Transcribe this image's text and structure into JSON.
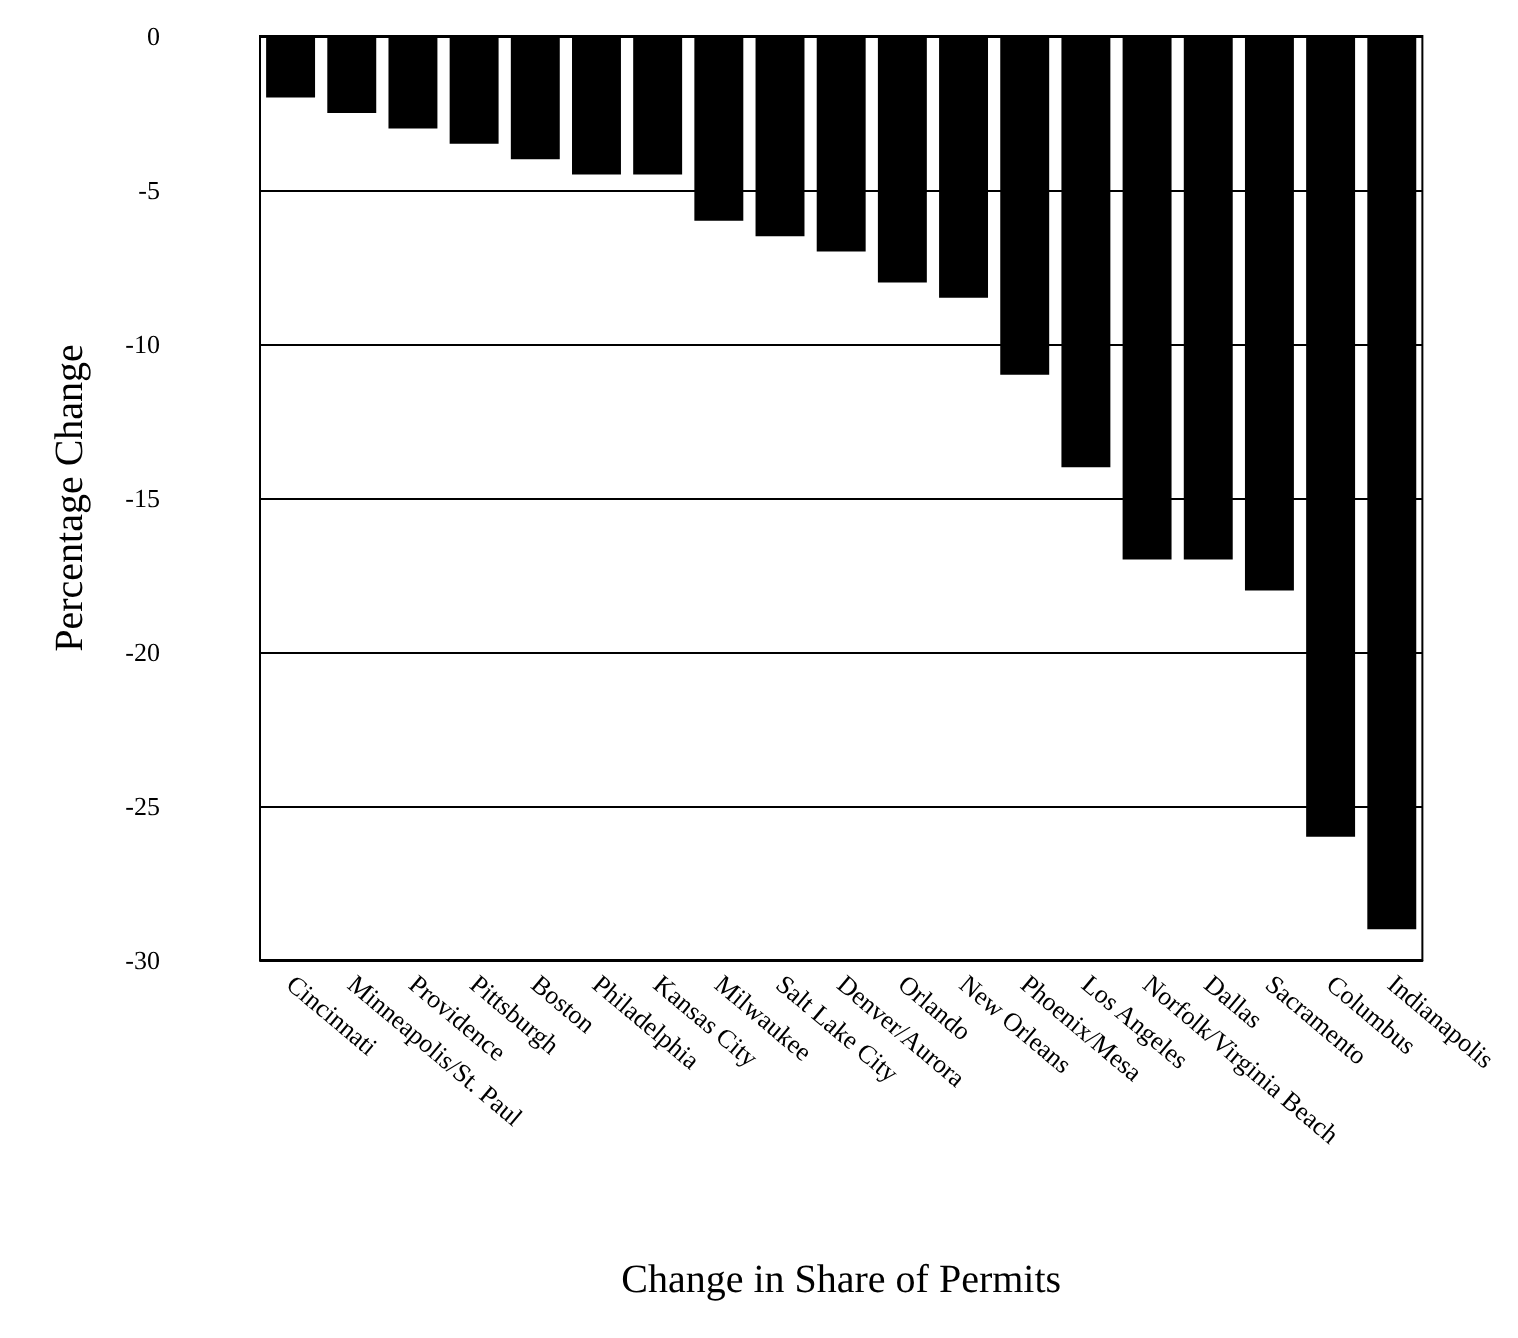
{
  "chart_data": {
    "type": "bar",
    "xlabel": "Change in Share of Permits",
    "ylabel": "Percentage Change",
    "categories": [
      "Cincinnati",
      "Minneapolis/St. Paul",
      "Providence",
      "Pittsburgh",
      "Boston",
      "Philadelphia",
      "Kansas City",
      "Milwaukee",
      "Salt Lake City",
      "Denver/Aurora",
      "Orlando",
      "New Orleans",
      "Phoenix/Mesa",
      "Los Angeles",
      "Norfolk/Virginia Beach",
      "Dallas",
      "Sacramento",
      "Columbus",
      "Indianapolis"
    ],
    "values": [
      -2,
      -2.5,
      -3,
      -3.5,
      -4,
      -4.5,
      -4.5,
      -6,
      -6.5,
      -7,
      -8,
      -8.5,
      -11,
      -14,
      -17,
      -17,
      -18,
      -26,
      -29
    ],
    "color": "#000000",
    "ylim": [
      -30,
      0
    ],
    "yticks": [
      -30,
      -25,
      -20,
      -15,
      -10,
      -5,
      0
    ],
    "grid": "y"
  }
}
